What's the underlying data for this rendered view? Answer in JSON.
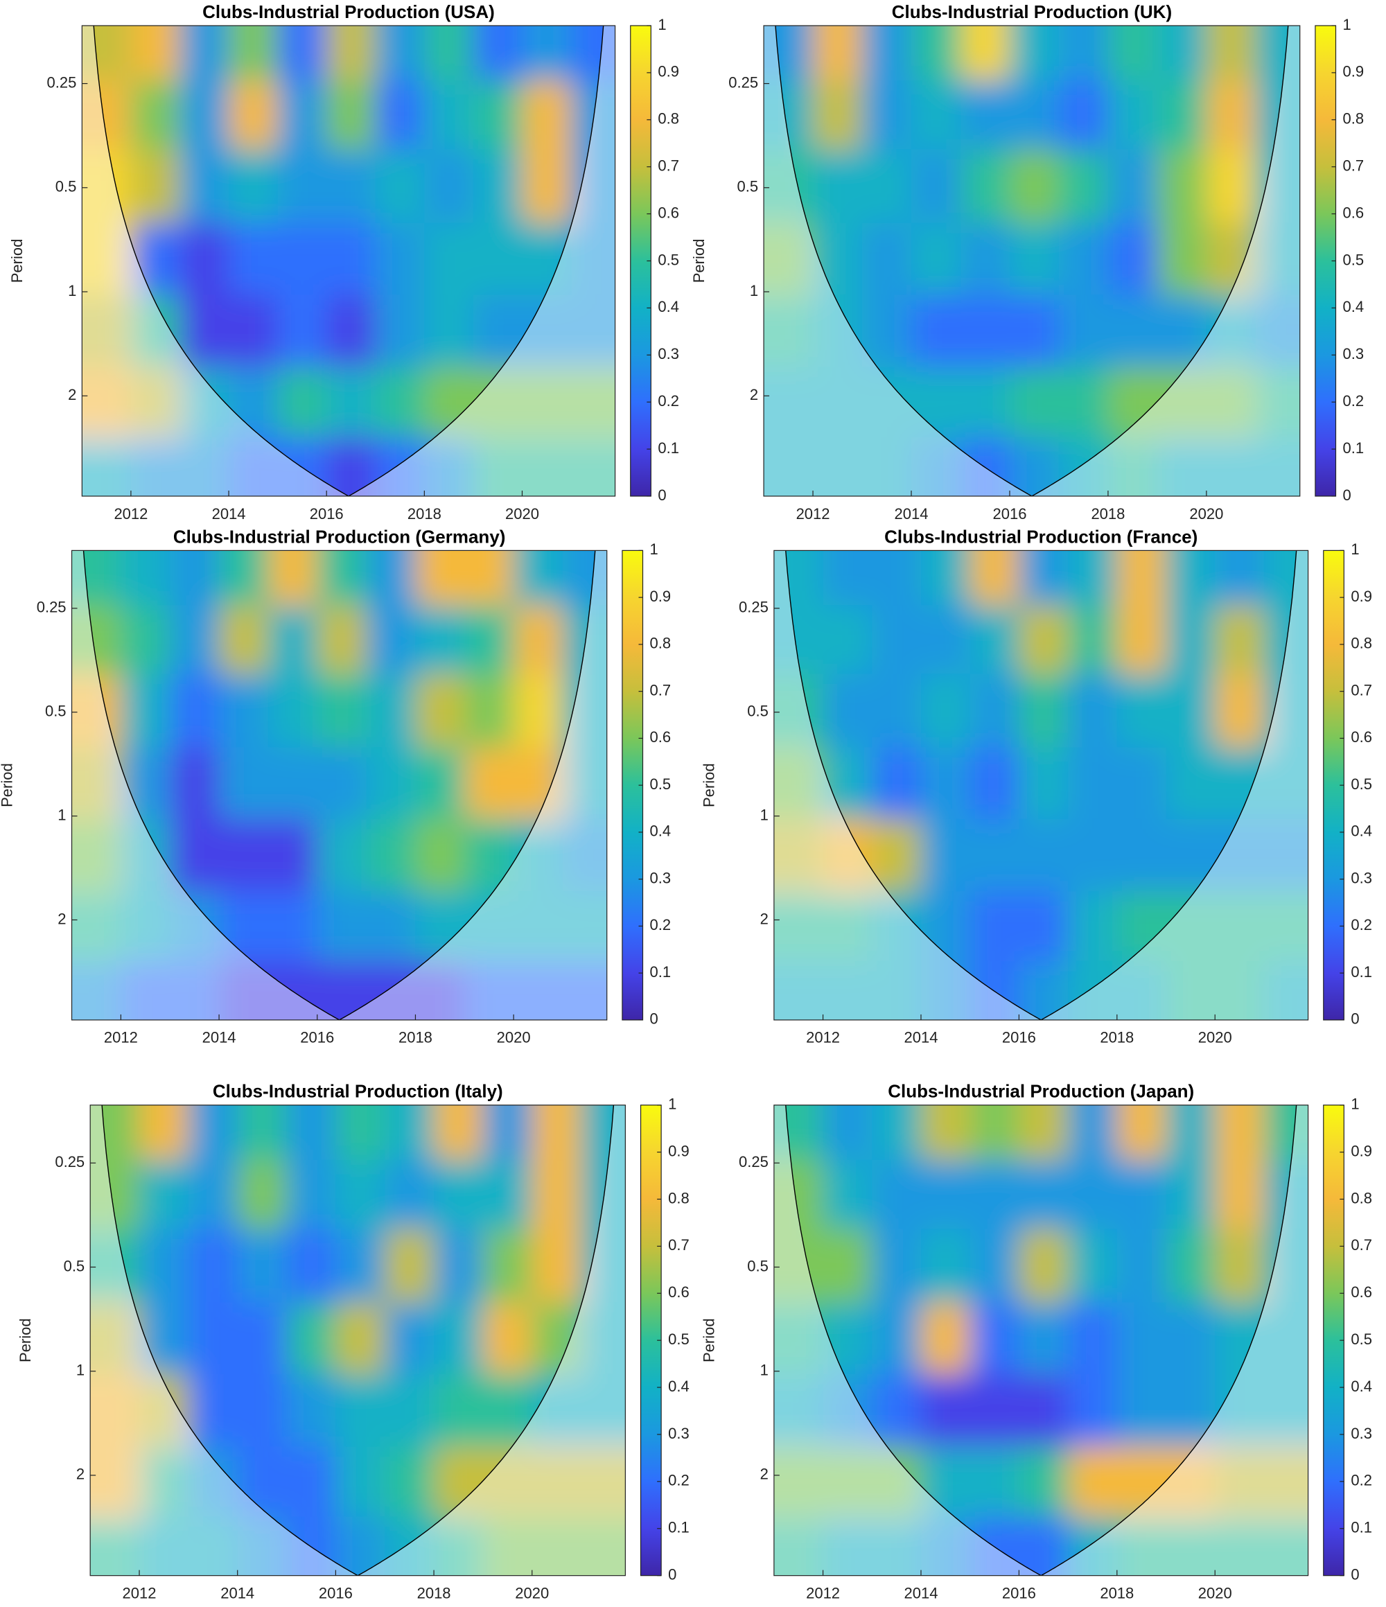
{
  "chart_data": [
    {
      "type": "heatmap",
      "title": "Clubs-Industrial Production (USA)",
      "ylabel": "Period",
      "yscale": "log",
      "colormap": "parula",
      "xlim": [
        2011,
        2021.9
      ],
      "ylim": [
        0.17,
        3.9
      ],
      "xticks": [
        2012,
        2014,
        2016,
        2018,
        2020
      ],
      "yticks": [
        0.25,
        0.5,
        1,
        2
      ],
      "clim": [
        0,
        1
      ],
      "cticks": [
        0,
        0.1,
        0.2,
        0.3,
        0.4,
        0.5,
        0.6,
        0.7,
        0.8,
        0.9,
        1
      ],
      "x": [
        2011.5,
        2012.5,
        2013.5,
        2014.5,
        2015.5,
        2016.5,
        2017.5,
        2018.5,
        2019.5,
        2020.5,
        2021.5
      ],
      "y": [
        0.2,
        0.3,
        0.5,
        0.8,
        1.3,
        2.1,
        3.3
      ],
      "z": [
        [
          0.7,
          0.8,
          0.3,
          0.6,
          0.2,
          0.7,
          0.3,
          0.5,
          0.2,
          0.3,
          0.2
        ],
        [
          0.8,
          0.6,
          0.3,
          0.8,
          0.3,
          0.6,
          0.2,
          0.4,
          0.5,
          0.8,
          0.3
        ],
        [
          0.9,
          0.7,
          0.3,
          0.4,
          0.3,
          0.3,
          0.4,
          0.3,
          0.4,
          0.8,
          0.3
        ],
        [
          0.9,
          0.2,
          0.1,
          0.2,
          0.2,
          0.2,
          0.3,
          0.4,
          0.4,
          0.4,
          0.3
        ],
        [
          0.7,
          0.5,
          0.1,
          0.1,
          0.2,
          0.1,
          0.3,
          0.4,
          0.3,
          0.3,
          0.3
        ],
        [
          0.8,
          0.7,
          0.4,
          0.3,
          0.5,
          0.4,
          0.5,
          0.6,
          0.6,
          0.6,
          0.6
        ],
        [
          0.4,
          0.3,
          0.3,
          0.2,
          0.2,
          0.1,
          0.2,
          0.3,
          0.5,
          0.5,
          0.5
        ]
      ]
    },
    {
      "type": "heatmap",
      "title": "Clubs-Industrial Production (UK)",
      "ylabel": "Period",
      "yscale": "log",
      "colormap": "parula",
      "xlim": [
        2011,
        2021.9
      ],
      "ylim": [
        0.17,
        3.9
      ],
      "xticks": [
        2012,
        2014,
        2016,
        2018,
        2020
      ],
      "yticks": [
        0.25,
        0.5,
        1,
        2
      ],
      "clim": [
        0,
        1
      ],
      "cticks": [
        0,
        0.1,
        0.2,
        0.3,
        0.4,
        0.5,
        0.6,
        0.7,
        0.8,
        0.9,
        1
      ],
      "x": [
        2011.5,
        2012.5,
        2013.5,
        2014.5,
        2015.5,
        2016.5,
        2017.5,
        2018.5,
        2019.5,
        2020.5,
        2021.5
      ],
      "y": [
        0.2,
        0.3,
        0.5,
        0.8,
        1.3,
        2.1,
        3.3
      ],
      "z": [
        [
          0.3,
          0.8,
          0.3,
          0.5,
          0.9,
          0.4,
          0.3,
          0.5,
          0.4,
          0.7,
          0.4
        ],
        [
          0.4,
          0.7,
          0.3,
          0.4,
          0.3,
          0.3,
          0.2,
          0.4,
          0.5,
          0.8,
          0.4
        ],
        [
          0.5,
          0.4,
          0.4,
          0.3,
          0.5,
          0.6,
          0.5,
          0.3,
          0.6,
          0.9,
          0.4
        ],
        [
          0.6,
          0.4,
          0.3,
          0.4,
          0.3,
          0.4,
          0.3,
          0.2,
          0.6,
          0.7,
          0.4
        ],
        [
          0.5,
          0.4,
          0.3,
          0.2,
          0.2,
          0.2,
          0.3,
          0.3,
          0.3,
          0.4,
          0.3
        ],
        [
          0.4,
          0.4,
          0.4,
          0.4,
          0.4,
          0.5,
          0.5,
          0.6,
          0.6,
          0.6,
          0.5
        ],
        [
          0.4,
          0.4,
          0.4,
          0.3,
          0.2,
          0.3,
          0.4,
          0.5,
          0.4,
          0.4,
          0.4
        ]
      ]
    },
    {
      "type": "heatmap",
      "title": "Clubs-Industrial Production (Germany)",
      "ylabel": "Period",
      "yscale": "log",
      "colormap": "parula",
      "xlim": [
        2011,
        2021.9
      ],
      "ylim": [
        0.17,
        3.9
      ],
      "xticks": [
        2012,
        2014,
        2016,
        2018,
        2020
      ],
      "yticks": [
        0.25,
        0.5,
        1,
        2
      ],
      "clim": [
        0,
        1
      ],
      "cticks": [
        0,
        0.1,
        0.2,
        0.3,
        0.4,
        0.5,
        0.6,
        0.7,
        0.8,
        0.9,
        1
      ],
      "x": [
        2011.5,
        2012.5,
        2013.5,
        2014.5,
        2015.5,
        2016.5,
        2017.5,
        2018.5,
        2019.5,
        2020.5,
        2021.5
      ],
      "y": [
        0.2,
        0.3,
        0.5,
        0.8,
        1.3,
        2.1,
        3.3
      ],
      "z": [
        [
          0.5,
          0.4,
          0.3,
          0.5,
          0.8,
          0.5,
          0.3,
          0.8,
          0.8,
          0.4,
          0.3
        ],
        [
          0.6,
          0.5,
          0.3,
          0.7,
          0.4,
          0.7,
          0.3,
          0.4,
          0.5,
          0.8,
          0.4
        ],
        [
          0.8,
          0.4,
          0.2,
          0.3,
          0.4,
          0.5,
          0.4,
          0.7,
          0.6,
          0.9,
          0.4
        ],
        [
          0.7,
          0.3,
          0.1,
          0.3,
          0.3,
          0.3,
          0.4,
          0.5,
          0.8,
          0.8,
          0.4
        ],
        [
          0.6,
          0.4,
          0.1,
          0.1,
          0.1,
          0.4,
          0.5,
          0.6,
          0.5,
          0.4,
          0.3
        ],
        [
          0.5,
          0.4,
          0.3,
          0.2,
          0.2,
          0.3,
          0.3,
          0.4,
          0.4,
          0.4,
          0.4
        ],
        [
          0.3,
          0.2,
          0.2,
          0.1,
          0.1,
          0.1,
          0.1,
          0.1,
          0.2,
          0.2,
          0.2
        ]
      ]
    },
    {
      "type": "heatmap",
      "title": "Clubs-Industrial Production (France)",
      "ylabel": "Period",
      "yscale": "log",
      "colormap": "parula",
      "xlim": [
        2011,
        2021.9
      ],
      "ylim": [
        0.17,
        3.9
      ],
      "xticks": [
        2012,
        2014,
        2016,
        2018,
        2020
      ],
      "yticks": [
        0.25,
        0.5,
        1,
        2
      ],
      "clim": [
        0,
        1
      ],
      "cticks": [
        0,
        0.1,
        0.2,
        0.3,
        0.4,
        0.5,
        0.6,
        0.7,
        0.8,
        0.9,
        1
      ],
      "x": [
        2011.5,
        2012.5,
        2013.5,
        2014.5,
        2015.5,
        2016.5,
        2017.5,
        2018.5,
        2019.5,
        2020.5,
        2021.5
      ],
      "y": [
        0.2,
        0.3,
        0.5,
        0.8,
        1.3,
        2.1,
        3.3
      ],
      "z": [
        [
          0.4,
          0.3,
          0.3,
          0.4,
          0.8,
          0.3,
          0.4,
          0.8,
          0.4,
          0.3,
          0.4
        ],
        [
          0.4,
          0.4,
          0.3,
          0.3,
          0.4,
          0.7,
          0.5,
          0.8,
          0.4,
          0.7,
          0.4
        ],
        [
          0.5,
          0.3,
          0.3,
          0.4,
          0.3,
          0.5,
          0.3,
          0.4,
          0.4,
          0.8,
          0.4
        ],
        [
          0.6,
          0.4,
          0.2,
          0.3,
          0.2,
          0.4,
          0.3,
          0.3,
          0.4,
          0.4,
          0.4
        ],
        [
          0.7,
          0.8,
          0.7,
          0.3,
          0.3,
          0.3,
          0.3,
          0.3,
          0.3,
          0.3,
          0.3
        ],
        [
          0.5,
          0.5,
          0.4,
          0.3,
          0.2,
          0.2,
          0.4,
          0.5,
          0.5,
          0.5,
          0.5
        ],
        [
          0.4,
          0.4,
          0.4,
          0.3,
          0.2,
          0.3,
          0.4,
          0.4,
          0.5,
          0.5,
          0.4
        ]
      ]
    },
    {
      "type": "heatmap",
      "title": "Clubs-Industrial Production (Italy)",
      "ylabel": "Period",
      "yscale": "log",
      "colormap": "parula",
      "xlim": [
        2011,
        2021.9
      ],
      "ylim": [
        0.17,
        3.9
      ],
      "xticks": [
        2012,
        2014,
        2016,
        2018,
        2020
      ],
      "yticks": [
        0.25,
        0.5,
        1,
        2
      ],
      "clim": [
        0,
        1
      ],
      "cticks": [
        0,
        0.1,
        0.2,
        0.3,
        0.4,
        0.5,
        0.6,
        0.7,
        0.8,
        0.9,
        1
      ],
      "x": [
        2011.5,
        2012.5,
        2013.5,
        2014.5,
        2015.5,
        2016.5,
        2017.5,
        2018.5,
        2019.5,
        2020.5,
        2021.5
      ],
      "y": [
        0.2,
        0.3,
        0.5,
        0.8,
        1.3,
        2.1,
        3.3
      ],
      "z": [
        [
          0.6,
          0.8,
          0.3,
          0.5,
          0.3,
          0.5,
          0.4,
          0.8,
          0.3,
          0.8,
          0.4
        ],
        [
          0.6,
          0.4,
          0.3,
          0.6,
          0.3,
          0.4,
          0.3,
          0.4,
          0.4,
          0.8,
          0.4
        ],
        [
          0.5,
          0.3,
          0.2,
          0.3,
          0.2,
          0.3,
          0.7,
          0.3,
          0.6,
          0.8,
          0.4
        ],
        [
          0.7,
          0.3,
          0.2,
          0.2,
          0.5,
          0.7,
          0.3,
          0.4,
          0.8,
          0.6,
          0.4
        ],
        [
          0.8,
          0.7,
          0.2,
          0.2,
          0.3,
          0.4,
          0.4,
          0.5,
          0.5,
          0.4,
          0.4
        ],
        [
          0.8,
          0.5,
          0.3,
          0.2,
          0.2,
          0.4,
          0.5,
          0.7,
          0.7,
          0.7,
          0.7
        ],
        [
          0.5,
          0.4,
          0.4,
          0.3,
          0.2,
          0.3,
          0.4,
          0.5,
          0.6,
          0.6,
          0.6
        ]
      ]
    },
    {
      "type": "heatmap",
      "title": "Clubs-Industrial Production (Japan)",
      "ylabel": "Period",
      "yscale": "log",
      "colormap": "parula",
      "xlim": [
        2011,
        2021.9
      ],
      "ylim": [
        0.17,
        3.9
      ],
      "xticks": [
        2012,
        2014,
        2016,
        2018,
        2020
      ],
      "yticks": [
        0.25,
        0.5,
        1,
        2
      ],
      "clim": [
        0,
        1
      ],
      "cticks": [
        0,
        0.1,
        0.2,
        0.3,
        0.4,
        0.5,
        0.6,
        0.7,
        0.8,
        0.9,
        1
      ],
      "x": [
        2011.5,
        2012.5,
        2013.5,
        2014.5,
        2015.5,
        2016.5,
        2017.5,
        2018.5,
        2019.5,
        2020.5,
        2021.5
      ],
      "y": [
        0.2,
        0.3,
        0.5,
        0.8,
        1.3,
        2.1,
        3.3
      ],
      "z": [
        [
          0.5,
          0.3,
          0.4,
          0.7,
          0.6,
          0.7,
          0.3,
          0.8,
          0.4,
          0.8,
          0.5
        ],
        [
          0.6,
          0.4,
          0.3,
          0.3,
          0.3,
          0.3,
          0.3,
          0.3,
          0.4,
          0.8,
          0.4
        ],
        [
          0.6,
          0.6,
          0.3,
          0.4,
          0.3,
          0.7,
          0.4,
          0.3,
          0.5,
          0.7,
          0.4
        ],
        [
          0.5,
          0.4,
          0.3,
          0.8,
          0.2,
          0.3,
          0.2,
          0.3,
          0.3,
          0.4,
          0.4
        ],
        [
          0.4,
          0.3,
          0.2,
          0.1,
          0.1,
          0.1,
          0.2,
          0.3,
          0.3,
          0.4,
          0.4
        ],
        [
          0.6,
          0.6,
          0.6,
          0.4,
          0.4,
          0.5,
          0.8,
          0.8,
          0.8,
          0.7,
          0.7
        ],
        [
          0.5,
          0.4,
          0.4,
          0.3,
          0.2,
          0.2,
          0.4,
          0.5,
          0.5,
          0.5,
          0.5
        ]
      ]
    }
  ]
}
